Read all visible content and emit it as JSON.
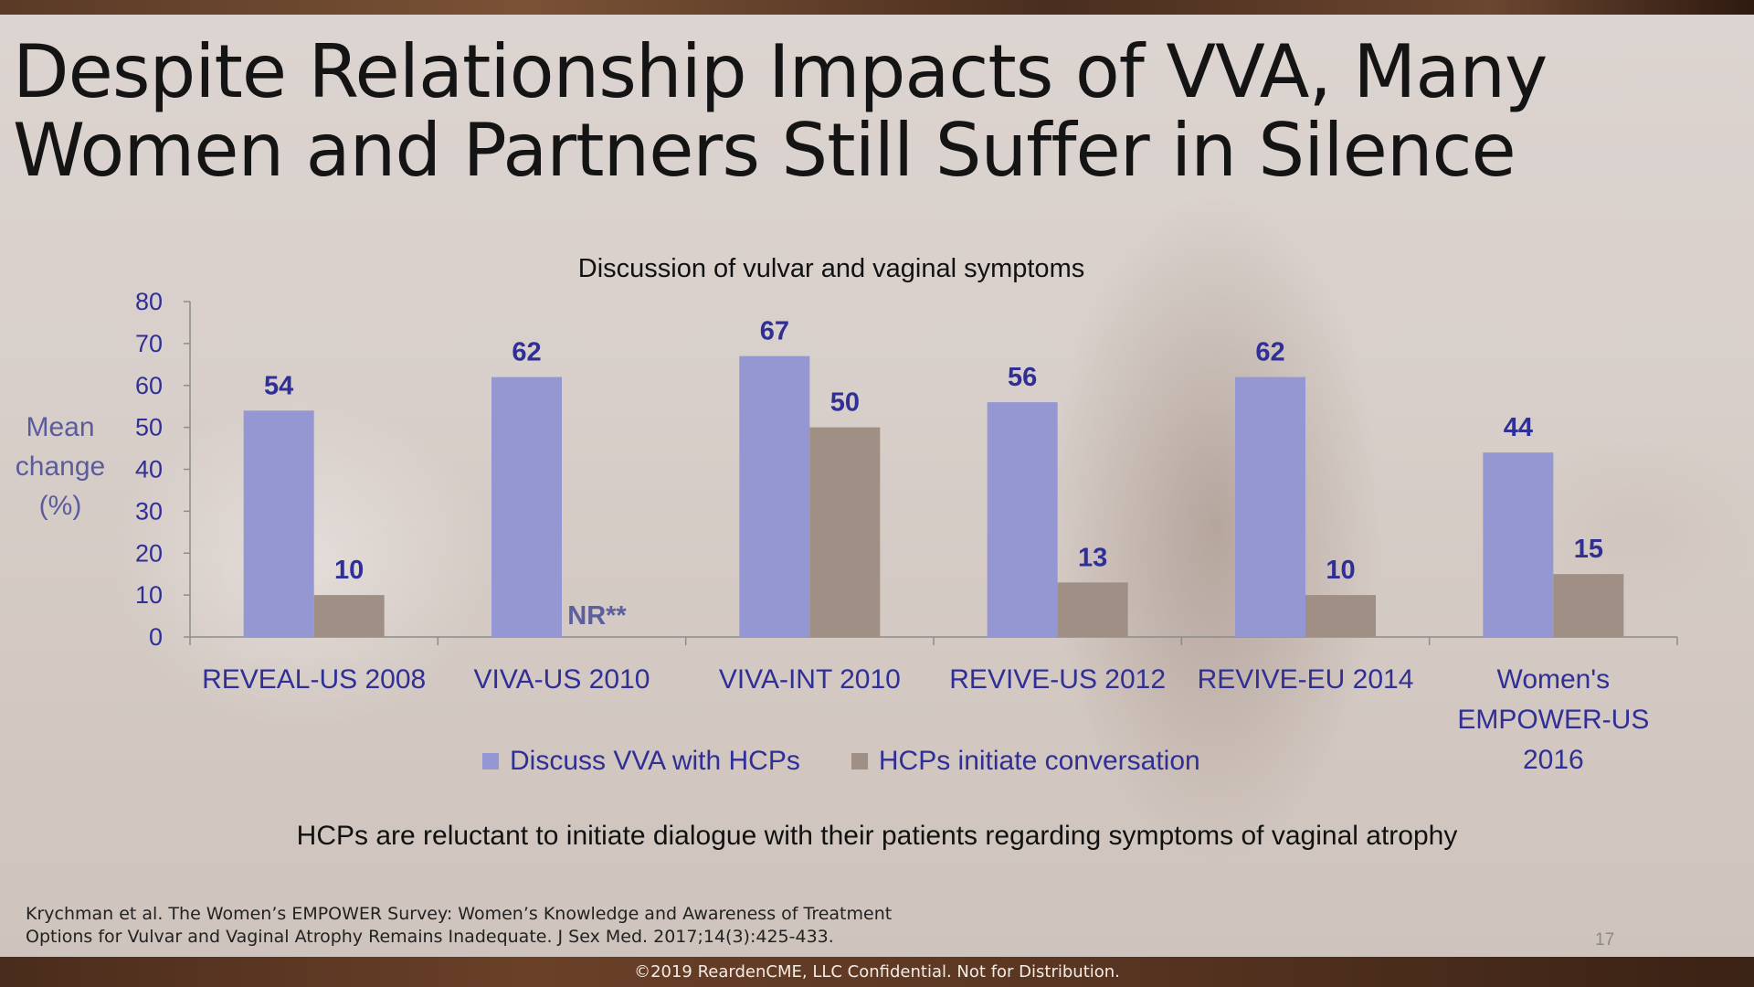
{
  "slide": {
    "title_lines": [
      "Despite Relationship Impacts of VVA, Many",
      "Women and Partners Still Suffer in Silence"
    ],
    "takeaway": "HCPs are reluctant to initiate dialogue with their patients regarding symptoms of vaginal atrophy",
    "citation_lines": [
      "Krychman et al. The Women’s EMPOWER Survey: Women’s Knowledge and Awareness of Treatment",
      "Options for Vulvar and Vaginal Atrophy Remains Inadequate. J Sex Med. 2017;14(3):425-433."
    ],
    "page_number": "17",
    "footer": "©2019 ReardenCME, LLC  Confidential. Not for Distribution."
  },
  "colors": {
    "discuss": "#9497d2",
    "initiate": "#9f8f84",
    "axis_text": "#2f2f96",
    "value_label": "#2f2f96",
    "nr_label": "#5c5f9e"
  },
  "chart_data": {
    "type": "bar",
    "title": "Discussion of vulvar and vaginal symptoms",
    "ylabel_lines": [
      "Mean",
      "change",
      "(%)"
    ],
    "xlabel": "",
    "ylim": [
      0,
      80
    ],
    "yticks": [
      0,
      10,
      20,
      30,
      40,
      50,
      60,
      70,
      80
    ],
    "categories": [
      [
        "REVEAL-US 2008"
      ],
      [
        "VIVA-US 2010"
      ],
      [
        "VIVA-INT 2010"
      ],
      [
        "REVIVE-US 2012"
      ],
      [
        "REVIVE-EU 2014"
      ],
      [
        "Women's",
        "EMPOWER-US",
        "2016"
      ]
    ],
    "series": [
      {
        "name": "Discuss VVA with HCPs",
        "values": [
          54,
          62,
          67,
          56,
          62,
          44
        ]
      },
      {
        "name": "HCPs initiate conversation",
        "values": [
          10,
          null,
          50,
          13,
          10,
          15
        ],
        "missing_label": "NR**"
      }
    ],
    "legend": "bottom",
    "grid": false
  }
}
